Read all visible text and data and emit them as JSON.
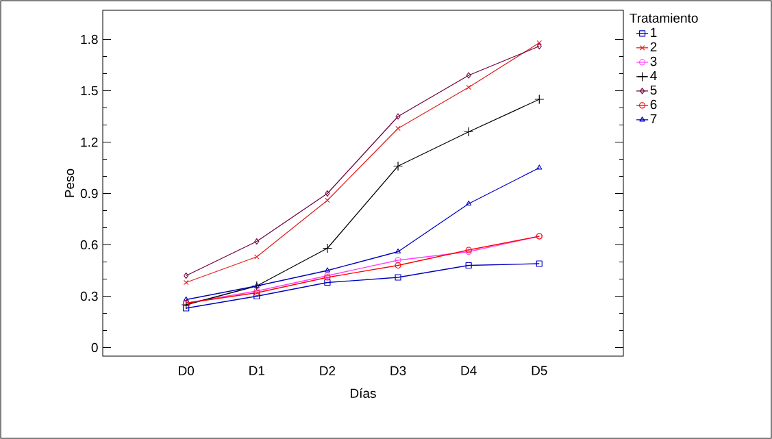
{
  "chart_data": {
    "type": "line",
    "xlabel": "Días",
    "ylabel": "Peso",
    "legend_title": "Tratamiento",
    "legend": "right",
    "categories": [
      "D0",
      "D1",
      "D2",
      "D3",
      "D4",
      "D5"
    ],
    "ylim": [
      -0.05,
      1.97
    ],
    "yticks": [
      0,
      0.3,
      0.6,
      0.9,
      1.2,
      1.5,
      1.8
    ],
    "grid": false,
    "series": [
      {
        "name": "1",
        "color": "#0000c0",
        "marker": "square",
        "values": [
          0.23,
          0.3,
          0.38,
          0.41,
          0.48,
          0.49
        ]
      },
      {
        "name": "2",
        "color": "#e02020",
        "marker": "cross",
        "values": [
          0.38,
          0.53,
          0.86,
          1.28,
          1.52,
          1.78
        ]
      },
      {
        "name": "3",
        "color": "#ff40ff",
        "marker": "circle",
        "values": [
          0.26,
          0.33,
          0.42,
          0.51,
          0.56,
          0.65
        ]
      },
      {
        "name": "4",
        "color": "#000000",
        "marker": "plus",
        "values": [
          0.25,
          0.36,
          0.58,
          1.06,
          1.26,
          1.45
        ]
      },
      {
        "name": "5",
        "color": "#700040",
        "marker": "diamond",
        "values": [
          0.42,
          0.62,
          0.9,
          1.35,
          1.59,
          1.76
        ]
      },
      {
        "name": "6",
        "color": "#ff0000",
        "marker": "circle",
        "values": [
          0.26,
          0.32,
          0.41,
          0.48,
          0.57,
          0.65
        ]
      },
      {
        "name": "7",
        "color": "#0000c0",
        "marker": "triangle",
        "values": [
          0.28,
          0.36,
          0.45,
          0.56,
          0.84,
          1.05
        ]
      }
    ]
  }
}
